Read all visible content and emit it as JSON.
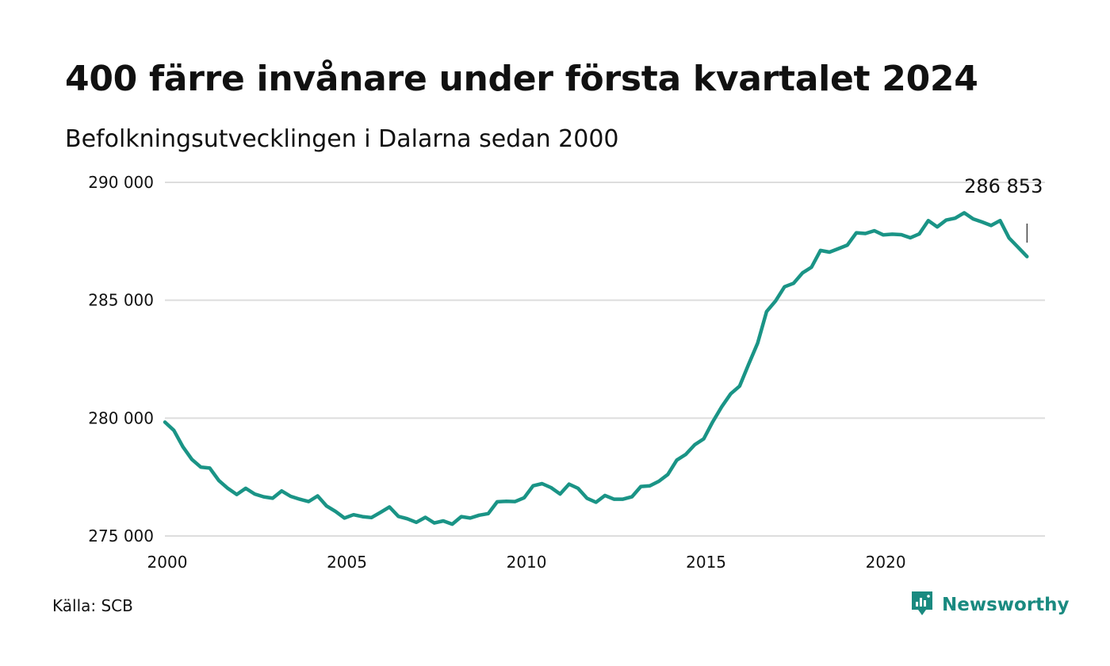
{
  "title": "400 färre invånare under första kvartalet 2024",
  "subtitle": "Befolkningsutvecklingen i Dalarna sedan 2000",
  "source": "Källa: SCB",
  "brand": {
    "name": "Newsworthy",
    "icon": "newsworthy-logo-icon",
    "color": "#1a8a80"
  },
  "colors": {
    "line": "#1a9486",
    "grid": "#dddddd",
    "text": "#111111"
  },
  "chart_data": {
    "type": "line",
    "title": "400 färre invånare under första kvartalet 2024",
    "subtitle": "Befolkningsutvecklingen i Dalarna sedan 2000",
    "xlabel": "",
    "ylabel": "",
    "xlim": [
      2000,
      2024.5
    ],
    "ylim": [
      275000,
      290000
    ],
    "grid": true,
    "legend": "none",
    "x_ticks": [
      2000,
      2005,
      2010,
      2015,
      2020
    ],
    "x_tick_labels": [
      "2000",
      "2005",
      "2010",
      "2015",
      "2020"
    ],
    "y_ticks": [
      275000,
      280000,
      285000,
      290000
    ],
    "y_tick_labels": [
      "275 000",
      "280 000",
      "285 000",
      "290 000"
    ],
    "annotation": {
      "text": "286 853",
      "x": 2024.0,
      "y": 286853
    },
    "series": [
      {
        "values": [
          [
            2000.0,
            279830
          ],
          [
            2000.25,
            279480
          ],
          [
            2000.5,
            278780
          ],
          [
            2000.75,
            278250
          ],
          [
            2001.0,
            277920
          ],
          [
            2001.25,
            277880
          ],
          [
            2001.5,
            277350
          ],
          [
            2001.75,
            277020
          ],
          [
            2002.0,
            276760
          ],
          [
            2002.25,
            277020
          ],
          [
            2002.5,
            276780
          ],
          [
            2002.75,
            276660
          ],
          [
            2003.0,
            276600
          ],
          [
            2003.25,
            276910
          ],
          [
            2003.5,
            276680
          ],
          [
            2003.75,
            276560
          ],
          [
            2004.0,
            276460
          ],
          [
            2004.25,
            276700
          ],
          [
            2004.5,
            276270
          ],
          [
            2004.75,
            276040
          ],
          [
            2005.0,
            275760
          ],
          [
            2005.25,
            275900
          ],
          [
            2005.5,
            275820
          ],
          [
            2005.75,
            275780
          ],
          [
            2006.0,
            276000
          ],
          [
            2006.25,
            276230
          ],
          [
            2006.5,
            275830
          ],
          [
            2006.75,
            275730
          ],
          [
            2007.0,
            275580
          ],
          [
            2007.25,
            275790
          ],
          [
            2007.5,
            275550
          ],
          [
            2007.75,
            275640
          ],
          [
            2008.0,
            275500
          ],
          [
            2008.25,
            275820
          ],
          [
            2008.5,
            275760
          ],
          [
            2008.75,
            275880
          ],
          [
            2009.0,
            275950
          ],
          [
            2009.25,
            276450
          ],
          [
            2009.5,
            276470
          ],
          [
            2009.75,
            276460
          ],
          [
            2010.0,
            276620
          ],
          [
            2010.25,
            277130
          ],
          [
            2010.5,
            277220
          ],
          [
            2010.75,
            277050
          ],
          [
            2011.0,
            276780
          ],
          [
            2011.25,
            277200
          ],
          [
            2011.5,
            277020
          ],
          [
            2011.75,
            276600
          ],
          [
            2012.0,
            276430
          ],
          [
            2012.25,
            276720
          ],
          [
            2012.5,
            276560
          ],
          [
            2012.75,
            276560
          ],
          [
            2013.0,
            276660
          ],
          [
            2013.25,
            277100
          ],
          [
            2013.5,
            277130
          ],
          [
            2013.75,
            277320
          ],
          [
            2014.0,
            277610
          ],
          [
            2014.25,
            278220
          ],
          [
            2014.5,
            278460
          ],
          [
            2014.75,
            278870
          ],
          [
            2015.0,
            279120
          ],
          [
            2015.25,
            279840
          ],
          [
            2015.5,
            280480
          ],
          [
            2015.75,
            281030
          ],
          [
            2016.0,
            281360
          ],
          [
            2016.25,
            282280
          ],
          [
            2016.5,
            283180
          ],
          [
            2016.75,
            284520
          ],
          [
            2017.0,
            284970
          ],
          [
            2017.25,
            285570
          ],
          [
            2017.5,
            285720
          ],
          [
            2017.75,
            286160
          ],
          [
            2018.0,
            286400
          ],
          [
            2018.25,
            287110
          ],
          [
            2018.5,
            287040
          ],
          [
            2018.75,
            287190
          ],
          [
            2019.0,
            287340
          ],
          [
            2019.25,
            287860
          ],
          [
            2019.5,
            287830
          ],
          [
            2019.75,
            287950
          ],
          [
            2020.0,
            287770
          ],
          [
            2020.25,
            287800
          ],
          [
            2020.5,
            287780
          ],
          [
            2020.75,
            287650
          ],
          [
            2021.0,
            287810
          ],
          [
            2021.25,
            288380
          ],
          [
            2021.5,
            288110
          ],
          [
            2021.75,
            288400
          ],
          [
            2022.0,
            288480
          ],
          [
            2022.25,
            288710
          ],
          [
            2022.5,
            288450
          ],
          [
            2022.75,
            288320
          ],
          [
            2023.0,
            288170
          ],
          [
            2023.25,
            288380
          ],
          [
            2023.5,
            287640
          ],
          [
            2023.75,
            287250
          ],
          [
            2024.0,
            286853
          ]
        ]
      }
    ]
  }
}
